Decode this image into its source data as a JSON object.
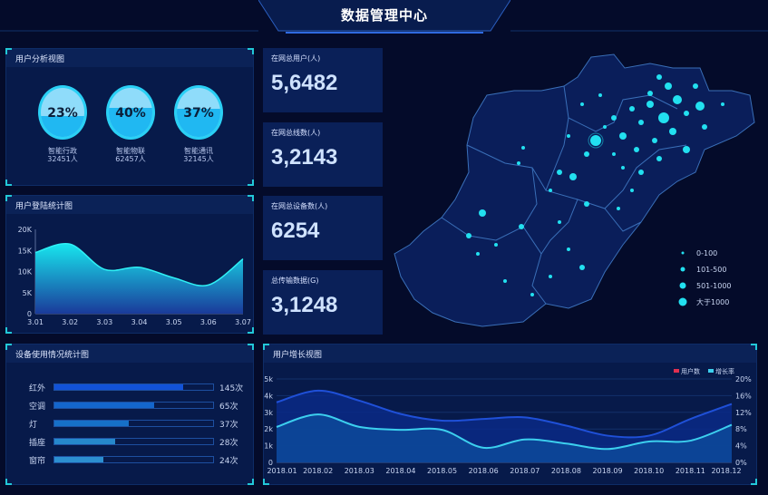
{
  "header": {
    "title": "数据管理中心"
  },
  "user_analysis": {
    "title": "用户分析视图",
    "items": [
      {
        "percent": "23%",
        "fill": 0.23,
        "name": "智能行政",
        "count": "32451人"
      },
      {
        "percent": "40%",
        "fill": 0.4,
        "name": "智能物联",
        "count": "62457人"
      },
      {
        "percent": "37%",
        "fill": 0.37,
        "name": "智能通讯",
        "count": "32145人"
      }
    ]
  },
  "login_chart": {
    "title": "用户登陆统计图"
  },
  "device_usage": {
    "title": "设备使用情况统计图",
    "items": [
      {
        "label": "红外",
        "value": "145次",
        "fill": 0.81,
        "color": "#1252d8"
      },
      {
        "label": "空调",
        "value": "65次",
        "fill": 0.63,
        "color": "#1466cc"
      },
      {
        "label": "灯",
        "value": "37次",
        "fill": 0.47,
        "color": "#1670c8"
      },
      {
        "label": "插座",
        "value": "28次",
        "fill": 0.38,
        "color": "#2688cc"
      },
      {
        "label": "窗帘",
        "value": "24次",
        "fill": 0.31,
        "color": "#2c8fd0"
      }
    ]
  },
  "stats": [
    {
      "label": "在网总用户(人)",
      "value": "5,6482"
    },
    {
      "label": "在网总线数(人)",
      "value": "3,2143"
    },
    {
      "label": "在网总设备数(人)",
      "value": "6254"
    },
    {
      "label": "总传输数据(G)",
      "value": "3,1248"
    }
  ],
  "map": {
    "legend": [
      "0-100",
      "101-500",
      "501-1000",
      "大于1000"
    ],
    "dot_color": "#22e0f0"
  },
  "growth_chart": {
    "title": "用户增长视图"
  },
  "chart_data": [
    {
      "type": "area",
      "categories": [
        "3.01",
        "3.02",
        "3.03",
        "3.04",
        "3.05",
        "3.06",
        "3.07"
      ],
      "values": [
        14500,
        16500,
        10500,
        11000,
        8500,
        6800,
        13000
      ],
      "yticks": [
        "0",
        "5K",
        "10K",
        "15K",
        "20K"
      ],
      "ylim": [
        0,
        20000
      ],
      "grid": false
    },
    {
      "type": "line",
      "categories": [
        "2018.01",
        "2018.02",
        "2018.03",
        "2018.04",
        "2018.05",
        "2018.06",
        "2018.07",
        "2018.08",
        "2018.09",
        "2018.10",
        "2018.11",
        "2018.12"
      ],
      "series": [
        {
          "name": "用户数",
          "axis": "left",
          "values": [
            3600,
            4300,
            3700,
            2900,
            2500,
            2600,
            2700,
            2200,
            1600,
            1600,
            2600,
            3500
          ],
          "color": "#e03050"
        },
        {
          "name": "增长率",
          "axis": "right",
          "values": [
            8.5,
            11.5,
            8.5,
            7.8,
            7.8,
            3.5,
            5.5,
            4.5,
            3.2,
            5,
            5.2,
            9
          ],
          "color": "#3ccfee"
        }
      ],
      "yticks_left": [
        "0",
        "1k",
        "2k",
        "3k",
        "4k",
        "5k"
      ],
      "ylim_left": [
        0,
        5000
      ],
      "yticks_right": [
        "0%",
        "4%",
        "8%",
        "12%",
        "16%",
        "20%"
      ],
      "ylim_right": [
        0,
        20
      ],
      "legend": "top-right",
      "grid": true
    }
  ]
}
